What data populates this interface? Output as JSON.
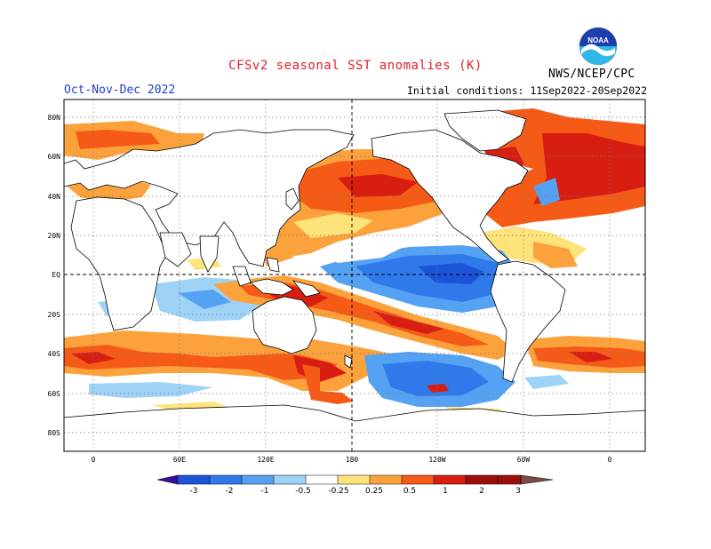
{
  "header": {
    "title": "CFSv2 seasonal SST anomalies (K)",
    "season": "Oct-Nov-Dec 2022",
    "initial_conditions": "Initial conditions: 11Sep2022-20Sep2022",
    "agency": "NWS/NCEP/CPC",
    "logo_text": "NOAA"
  },
  "axes": {
    "lat_labels": [
      "80N",
      "60N",
      "40N",
      "20N",
      "EQ",
      "20S",
      "40S",
      "60S",
      "80S"
    ],
    "lon_labels": [
      "0",
      "60E",
      "120E",
      "180",
      "120W",
      "60W",
      "0"
    ]
  },
  "colorbar": {
    "labels": [
      "-3",
      "-2",
      "-1",
      "-0.5",
      "-0.25",
      "0.25",
      "0.5",
      "1",
      "2",
      "3"
    ],
    "colors": [
      "#3a0f9e",
      "#1c54d8",
      "#2f79ea",
      "#55a2f2",
      "#9fd3f6",
      "#ffffff",
      "#fde37a",
      "#fca23c",
      "#f55b17",
      "#d81e12",
      "#9b0e0a",
      "#7a4a44"
    ]
  },
  "colors": {
    "land": "#ffffff",
    "coast": "#000000",
    "grid": "#777777",
    "title": "#e0202a",
    "season": "#1f3fc4"
  }
}
